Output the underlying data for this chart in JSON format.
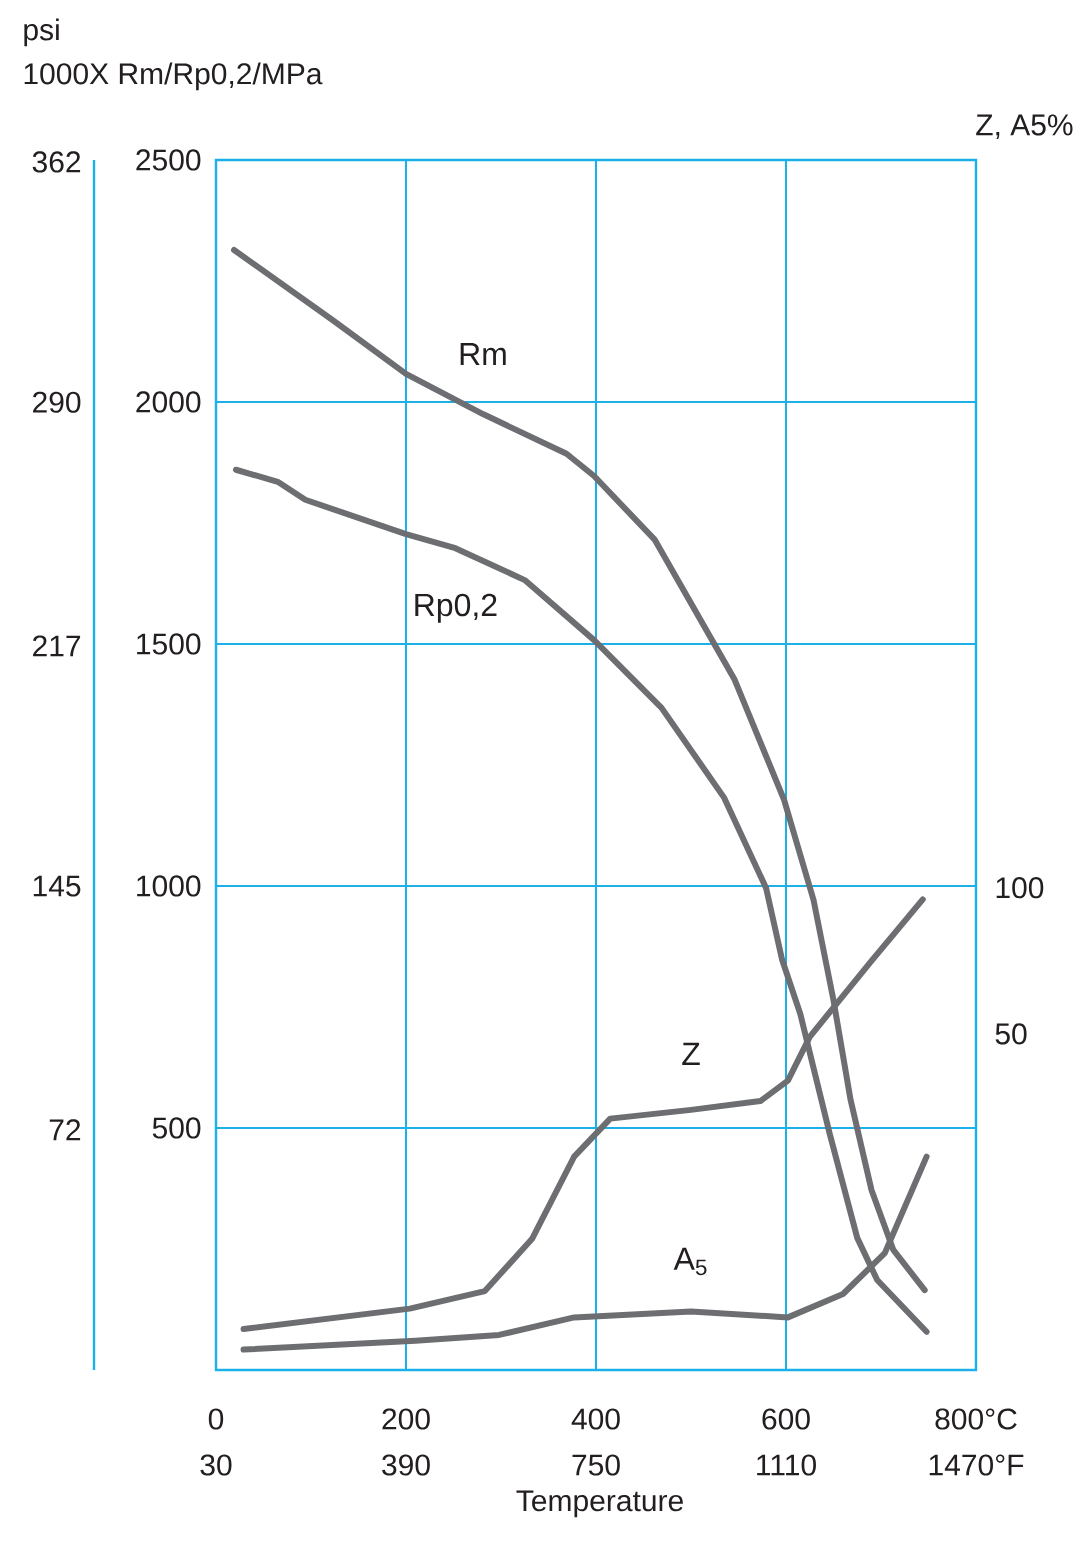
{
  "chart_data": {
    "type": "line",
    "xlabel": "Temperature",
    "ylabel": "1000X Rm/Rp0,2/MPa",
    "y2label": "Z, A5%",
    "y3label": "psi",
    "xlim": [
      0,
      800
    ],
    "xticks": [
      0,
      200,
      400,
      600,
      {
        "value": 800,
        "label": "800°C"
      }
    ],
    "x2lim": [
      30,
      1470
    ],
    "x2ticks": [
      30,
      390,
      750,
      1110,
      {
        "value": 1470,
        "label": "1470°F"
      }
    ],
    "ylim": [
      0,
      2500
    ],
    "yticks": [
      500,
      1000,
      1500,
      2000,
      2500
    ],
    "y2lim": [
      -65,
      349
    ],
    "y2ticks": [
      50,
      100
    ],
    "y3lim": [
      0,
      362.6
    ],
    "y3ticks": [
      72,
      145,
      217,
      290,
      362
    ],
    "grid": true,
    "series": [
      {
        "name": "Rm",
        "color": "#6d6e71",
        "x": [
          19,
          123,
          200,
          281,
          369,
          398,
          462,
          546,
          598,
          629,
          650,
          668,
          690,
          713,
          746
        ],
        "values": [
          2314,
          2169,
          2058,
          1975,
          1893,
          1847,
          1715,
          1426,
          1178,
          971,
          764,
          558,
          372,
          248,
          165
        ]
      },
      {
        "name": "Rp0,2",
        "color": "#6d6e71",
        "x": [
          21,
          65,
          94,
          200,
          252,
          325,
          398,
          469,
          535,
          579,
          596,
          615,
          646,
          675,
          696,
          748
        ],
        "values": [
          1860,
          1835,
          1798,
          1727,
          1698,
          1632,
          1508,
          1368,
          1182,
          996,
          847,
          736,
          488,
          273,
          186,
          79
        ]
      },
      {
        "name": "Z",
        "color": "#6d6e71",
        "axis": "y2",
        "x": [
          29,
          204,
          283,
          333,
          377,
          415,
          500,
          573,
          602,
          625,
          690,
          744
        ],
        "values": [
          -51,
          -44,
          -38,
          -20,
          8,
          21,
          24,
          27,
          34,
          49,
          75,
          96
        ]
      },
      {
        "name": "A$_{5}$",
        "color": "#6d6e71",
        "axis": "y2",
        "x": [
          29,
          210,
          298,
          377,
          500,
          602,
          660,
          704,
          748
        ],
        "values": [
          -58,
          -55,
          -53,
          -47,
          -45,
          -47,
          -39,
          -25,
          8
        ]
      }
    ]
  }
}
